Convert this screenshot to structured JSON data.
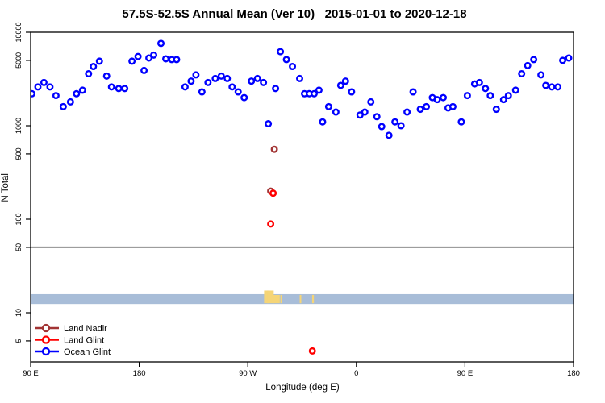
{
  "chart_data": {
    "type": "scatter",
    "title": "57.5S-52.5S Annual Mean (Ver 10)   2015-01-01 to 2020-12-18",
    "xlabel": "Longitude (deg E)",
    "ylabel": "N Total",
    "y_scale": "log",
    "ylim": [
      3,
      10000
    ],
    "x_axis_deg_range": [
      90,
      540
    ],
    "x_ticks": [
      {
        "deg": 90,
        "label": "90 E"
      },
      {
        "deg": 180,
        "label": "180"
      },
      {
        "deg": 270,
        "label": "90 W"
      },
      {
        "deg": 360,
        "label": "0"
      },
      {
        "deg": 450,
        "label": "90 E"
      },
      {
        "deg": 540,
        "label": "180"
      }
    ],
    "y_ticks": [
      10000,
      5000,
      1000,
      500,
      100,
      50,
      10,
      5
    ],
    "reference_line": {
      "value": 50,
      "color": "#8f8f8f"
    },
    "map_band": {
      "value_top": 15.8,
      "value_bottom": 12.4,
      "ocean_color": "#a8bdd8",
      "land_color": "#f5d577",
      "land_patches": [
        {
          "deg0": 283.5,
          "deg1": 287.5,
          "rise": true
        },
        {
          "deg0": 286.0,
          "deg1": 291.5,
          "rise": true
        },
        {
          "deg0": 291.0,
          "deg1": 296.5,
          "rise": false
        },
        {
          "deg0": 297.0,
          "deg1": 298.3,
          "rise": false
        },
        {
          "deg0": 313.0,
          "deg1": 314.0,
          "rise": false
        },
        {
          "deg0": 323.3,
          "deg1": 324.8,
          "rise": false
        }
      ]
    },
    "legend": {
      "position": "bottom-left",
      "items": [
        "Land Nadir",
        "Land Glint",
        "Ocean Glint"
      ]
    },
    "series": [
      {
        "name": "Land Nadir",
        "color": "#a23434",
        "points": [
          [
            292,
            560
          ],
          [
            289,
            200
          ]
        ]
      },
      {
        "name": "Land Glint",
        "color": "#ff0000",
        "points": [
          [
            291,
            190
          ],
          [
            289,
            89
          ],
          [
            323.5,
            3.9
          ]
        ]
      },
      {
        "name": "Ocean Glint",
        "color": "#0000ff",
        "points": [
          [
            91,
            2200
          ],
          [
            96,
            2600
          ],
          [
            101,
            2900
          ],
          [
            106,
            2600
          ],
          [
            111,
            2100
          ],
          [
            117,
            1600
          ],
          [
            123,
            1800
          ],
          [
            128,
            2200
          ],
          [
            133,
            2400
          ],
          [
            138,
            3600
          ],
          [
            142,
            4300
          ],
          [
            147,
            4900
          ],
          [
            153,
            3400
          ],
          [
            157,
            2600
          ],
          [
            163,
            2500
          ],
          [
            168,
            2500
          ],
          [
            174,
            4900
          ],
          [
            179,
            5500
          ],
          [
            184,
            3900
          ],
          [
            188,
            5300
          ],
          [
            192,
            5700
          ],
          [
            198,
            7600
          ],
          [
            202,
            5200
          ],
          [
            207,
            5100
          ],
          [
            211,
            5100
          ],
          [
            218,
            2600
          ],
          [
            223,
            3000
          ],
          [
            227,
            3500
          ],
          [
            232,
            2300
          ],
          [
            237,
            2900
          ],
          [
            243,
            3200
          ],
          [
            248,
            3400
          ],
          [
            253,
            3200
          ],
          [
            257,
            2600
          ],
          [
            262,
            2300
          ],
          [
            267,
            2000
          ],
          [
            273,
            3000
          ],
          [
            278,
            3200
          ],
          [
            283,
            2900
          ],
          [
            287,
            1050
          ],
          [
            293,
            2500
          ],
          [
            297,
            6200
          ],
          [
            302,
            5100
          ],
          [
            307,
            4300
          ],
          [
            313,
            3200
          ],
          [
            317,
            2200
          ],
          [
            321,
            2200
          ],
          [
            325,
            2200
          ],
          [
            329,
            2400
          ],
          [
            332,
            1100
          ],
          [
            337,
            1600
          ],
          [
            343,
            1400
          ],
          [
            347,
            2700
          ],
          [
            351,
            3000
          ],
          [
            356,
            2300
          ],
          [
            363,
            1300
          ],
          [
            367,
            1400
          ],
          [
            372,
            1800
          ],
          [
            377,
            1250
          ],
          [
            381,
            980
          ],
          [
            387,
            790
          ],
          [
            392,
            1100
          ],
          [
            397,
            1000
          ],
          [
            402,
            1400
          ],
          [
            407,
            2300
          ],
          [
            413,
            1500
          ],
          [
            418,
            1600
          ],
          [
            423,
            2000
          ],
          [
            427,
            1900
          ],
          [
            432,
            2000
          ],
          [
            436,
            1550
          ],
          [
            440,
            1600
          ],
          [
            447,
            1100
          ],
          [
            452,
            2100
          ],
          [
            458,
            2800
          ],
          [
            462,
            2900
          ],
          [
            467,
            2500
          ],
          [
            471,
            2100
          ],
          [
            476,
            1500
          ],
          [
            482,
            1900
          ],
          [
            486,
            2100
          ],
          [
            492,
            2400
          ],
          [
            497,
            3600
          ],
          [
            502,
            4400
          ],
          [
            507,
            5100
          ],
          [
            513,
            3500
          ],
          [
            517,
            2700
          ],
          [
            522,
            2600
          ],
          [
            527,
            2600
          ],
          [
            531,
            5000
          ],
          [
            536,
            5300
          ]
        ]
      }
    ]
  }
}
